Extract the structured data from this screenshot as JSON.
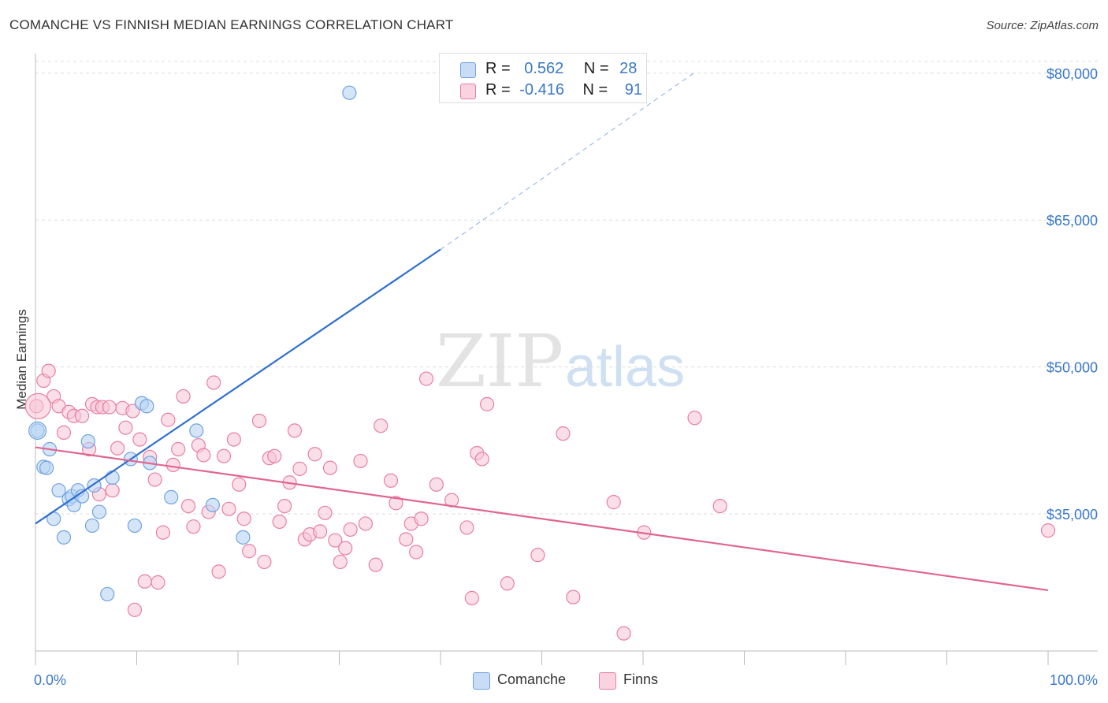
{
  "title": "COMANCHE VS FINNISH MEDIAN EARNINGS CORRELATION CHART",
  "source": "Source: ZipAtlas.com",
  "watermark": {
    "zip": "ZIP",
    "atlas": "atlas"
  },
  "colors": {
    "comanche": "#6fa3e0",
    "comanche_fill": "#b9d3f3",
    "finns": "#e87fa3",
    "finns_fill": "#f7c5d6",
    "comanche_line": "#2f6fce",
    "finns_line": "#e0668f",
    "axis_text": "#3a78c9"
  },
  "legend": {
    "rows": [
      {
        "r_label": "R =",
        "r_value": "0.562",
        "n_label": "N =",
        "n_value": "28"
      },
      {
        "r_label": "R =",
        "r_value": "-0.416",
        "n_label": "N =",
        "n_value": "91"
      }
    ],
    "bottom": [
      {
        "label": "Comanche"
      },
      {
        "label": "Finns"
      }
    ]
  },
  "chart_data": {
    "type": "scatter",
    "title": "COMANCHE VS FINNISH MEDIAN EARNINGS CORRELATION CHART",
    "xlabel": "",
    "ylabel": "Median Earnings",
    "xlim": [
      0,
      100
    ],
    "ylim": [
      21000,
      82000
    ],
    "x_tick_labels": [
      "0.0%",
      "100.0%"
    ],
    "y_ticks": [
      35000,
      50000,
      65000,
      80000
    ],
    "y_tick_labels": [
      "$35,000",
      "$50,000",
      "$65,000",
      "$80,000"
    ],
    "grid": true,
    "legend_position": "top-center",
    "series": [
      {
        "name": "Comanche",
        "r": 0.562,
        "n": 28,
        "trend": {
          "x": [
            0,
            40
          ],
          "y": [
            34000,
            62000
          ],
          "dashed_to": [
            65,
            80000
          ]
        },
        "points": [
          [
            0.2,
            43500
          ],
          [
            0.8,
            39800
          ],
          [
            1.1,
            39700
          ],
          [
            1.4,
            41600
          ],
          [
            1.8,
            34500
          ],
          [
            2.3,
            37400
          ],
          [
            2.8,
            32600
          ],
          [
            3.3,
            36500
          ],
          [
            3.6,
            36800
          ],
          [
            3.8,
            35900
          ],
          [
            4.2,
            37400
          ],
          [
            4.6,
            36800
          ],
          [
            5.2,
            42400
          ],
          [
            5.6,
            33800
          ],
          [
            5.8,
            37900
          ],
          [
            6.3,
            35200
          ],
          [
            7.1,
            26800
          ],
          [
            7.6,
            38700
          ],
          [
            9.4,
            40600
          ],
          [
            9.8,
            33800
          ],
          [
            10.5,
            46300
          ],
          [
            11.0,
            46000
          ],
          [
            11.3,
            40200
          ],
          [
            13.4,
            36700
          ],
          [
            15.9,
            43500
          ],
          [
            17.5,
            35900
          ],
          [
            20.5,
            32600
          ],
          [
            31.0,
            78000
          ]
        ]
      },
      {
        "name": "Finns",
        "r": -0.416,
        "n": 91,
        "trend": {
          "x": [
            0,
            100
          ],
          "y": [
            41800,
            27200
          ]
        },
        "points": [
          [
            0.1,
            46000
          ],
          [
            0.8,
            48600
          ],
          [
            1.3,
            49600
          ],
          [
            1.8,
            47000
          ],
          [
            2.3,
            46000
          ],
          [
            2.8,
            43300
          ],
          [
            3.3,
            45400
          ],
          [
            3.8,
            45000
          ],
          [
            4.6,
            45000
          ],
          [
            5.3,
            41600
          ],
          [
            5.6,
            46200
          ],
          [
            6.1,
            45900
          ],
          [
            6.3,
            37000
          ],
          [
            6.6,
            45900
          ],
          [
            7.3,
            45900
          ],
          [
            7.6,
            37400
          ],
          [
            8.1,
            41700
          ],
          [
            8.6,
            45800
          ],
          [
            8.9,
            43800
          ],
          [
            9.6,
            45500
          ],
          [
            9.8,
            25200
          ],
          [
            10.3,
            42600
          ],
          [
            10.8,
            28100
          ],
          [
            11.3,
            40800
          ],
          [
            11.8,
            38500
          ],
          [
            12.1,
            28000
          ],
          [
            12.6,
            33100
          ],
          [
            13.1,
            44600
          ],
          [
            13.6,
            40000
          ],
          [
            14.1,
            41600
          ],
          [
            14.6,
            47000
          ],
          [
            15.1,
            35800
          ],
          [
            15.6,
            33700
          ],
          [
            16.1,
            42000
          ],
          [
            16.6,
            41000
          ],
          [
            17.1,
            35200
          ],
          [
            17.6,
            48400
          ],
          [
            18.1,
            29100
          ],
          [
            18.6,
            40900
          ],
          [
            19.1,
            35500
          ],
          [
            19.6,
            42600
          ],
          [
            20.1,
            38000
          ],
          [
            20.6,
            34500
          ],
          [
            21.1,
            31200
          ],
          [
            22.1,
            44500
          ],
          [
            22.6,
            30100
          ],
          [
            23.1,
            40700
          ],
          [
            23.6,
            40900
          ],
          [
            24.1,
            34200
          ],
          [
            24.6,
            35800
          ],
          [
            25.1,
            38200
          ],
          [
            25.6,
            43500
          ],
          [
            26.1,
            39600
          ],
          [
            26.6,
            32400
          ],
          [
            27.1,
            32900
          ],
          [
            27.6,
            41100
          ],
          [
            28.1,
            33200
          ],
          [
            28.6,
            35100
          ],
          [
            29.1,
            39700
          ],
          [
            29.6,
            32300
          ],
          [
            30.1,
            30100
          ],
          [
            30.6,
            31500
          ],
          [
            31.1,
            33400
          ],
          [
            32.1,
            40400
          ],
          [
            32.6,
            34000
          ],
          [
            33.6,
            29800
          ],
          [
            34.1,
            44000
          ],
          [
            35.1,
            38400
          ],
          [
            35.6,
            36100
          ],
          [
            36.6,
            32400
          ],
          [
            37.1,
            34000
          ],
          [
            37.6,
            31100
          ],
          [
            38.1,
            34500
          ],
          [
            38.6,
            48800
          ],
          [
            39.6,
            38000
          ],
          [
            41.1,
            36400
          ],
          [
            42.6,
            33600
          ],
          [
            43.1,
            26400
          ],
          [
            43.6,
            41200
          ],
          [
            44.1,
            40600
          ],
          [
            44.6,
            46200
          ],
          [
            46.6,
            27900
          ],
          [
            49.6,
            30800
          ],
          [
            52.1,
            43200
          ],
          [
            53.1,
            26500
          ],
          [
            57.1,
            36200
          ],
          [
            58.1,
            22800
          ],
          [
            60.1,
            33100
          ],
          [
            65.1,
            44800
          ],
          [
            67.6,
            35800
          ],
          [
            100.0,
            33300
          ]
        ]
      }
    ]
  }
}
